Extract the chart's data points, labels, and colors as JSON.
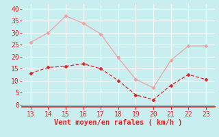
{
  "x": [
    13,
    14,
    15,
    16,
    17,
    18,
    19,
    20,
    21,
    22,
    23
  ],
  "y_mean": [
    13,
    15.5,
    16,
    17,
    15,
    10,
    4,
    2,
    8,
    12.5,
    10.5
  ],
  "y_gust": [
    26,
    30,
    37,
    34,
    29.5,
    19.5,
    10.5,
    7,
    18.5,
    24.5,
    24.5
  ],
  "line_color_mean": "#dd2222",
  "line_color_gust": "#f0a0a0",
  "markersize": 2.5,
  "xlabel": "Vent moyen/en rafales ( km/h )",
  "xlabel_color": "#dd2222",
  "xlabel_fontsize": 7.5,
  "xticks": [
    13,
    14,
    15,
    16,
    17,
    18,
    19,
    20,
    21,
    22,
    23
  ],
  "yticks": [
    0,
    5,
    10,
    15,
    20,
    25,
    30,
    35,
    40
  ],
  "ylim": [
    -1,
    42
  ],
  "xlim": [
    12.5,
    23.5
  ],
  "bg_color": "#c8eef0",
  "grid_color": "#ffffff",
  "tick_color": "#dd2222",
  "tick_label_color": "#dd2222",
  "tick_label_fontsize": 7,
  "spine_color": "#dd2222",
  "linewidth": 0.9
}
